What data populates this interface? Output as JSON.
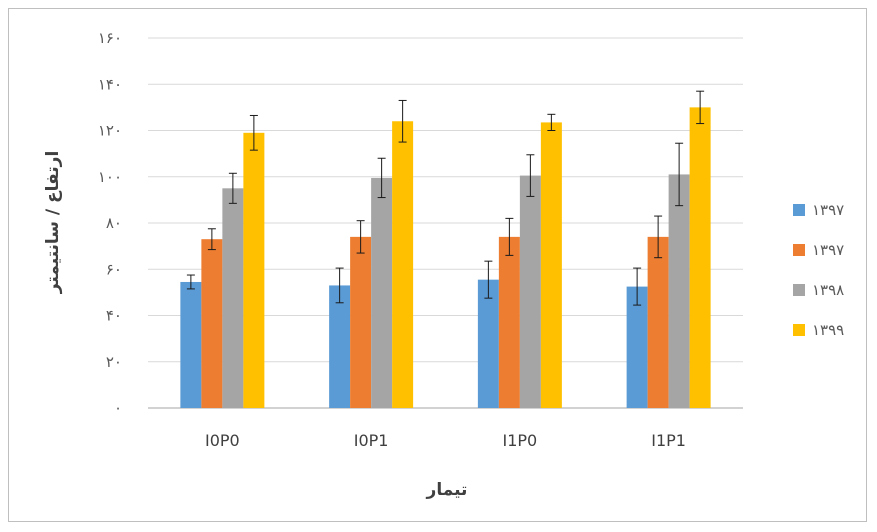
{
  "chart_data": {
    "type": "bar",
    "categories": [
      "I0P0",
      "I0P1",
      "I1P0",
      "I1P1"
    ],
    "series": [
      {
        "name": "۱۳۹۷",
        "color": "#5b9bd5",
        "values": [
          54.5,
          53,
          55.5,
          52.5
        ],
        "errors": [
          3,
          7.5,
          8,
          8
        ]
      },
      {
        "name": "۱۳۹۷",
        "color": "#ed7d31",
        "values": [
          73,
          74,
          74,
          74
        ],
        "errors": [
          4.5,
          7,
          8,
          9
        ]
      },
      {
        "name": "۱۳۹۸",
        "color": "#a5a5a5",
        "values": [
          95,
          99.5,
          100.5,
          101
        ],
        "errors": [
          6.5,
          8.5,
          9,
          13.5
        ]
      },
      {
        "name": "۱۳۹۹",
        "color": "#ffc000",
        "values": [
          119,
          124,
          123.5,
          130
        ],
        "errors": [
          7.5,
          9,
          3.5,
          7
        ]
      }
    ],
    "xlabel": "تیمار",
    "ylabel": "ارتفاع / سانتیمتر",
    "ylim": [
      0,
      160
    ],
    "yticks": [
      "۰",
      "۲۰",
      "۴۰",
      "۶۰",
      "۸۰",
      "۱۰۰",
      "۱۲۰",
      "۱۴۰",
      "۱۶۰"
    ],
    "grid": true,
    "legend_position": "right"
  }
}
